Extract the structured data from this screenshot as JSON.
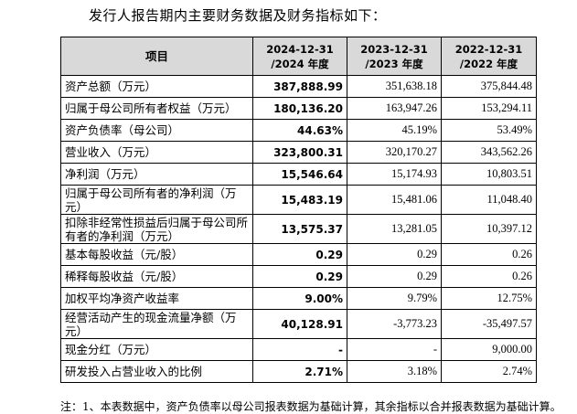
{
  "intro": "发行人报告期内主要财务数据及财务指标如下：",
  "header": {
    "item": "项目",
    "cols": [
      {
        "l1": "2024-12-31",
        "l2": "/2024 年度"
      },
      {
        "l1": "2023-12-31",
        "l2": "/2023 年度"
      },
      {
        "l1": "2022-12-31",
        "l2": "/2022 年度"
      }
    ]
  },
  "rows": [
    {
      "label": "资产总额（万元）",
      "v2024": "387,888.99",
      "v2023": "351,638.18",
      "v2022": "375,844.48"
    },
    {
      "label": "归属于母公司所有者权益（万元）",
      "v2024": "180,136.20",
      "v2023": "163,947.26",
      "v2022": "153,294.11"
    },
    {
      "label": "资产负债率（母公司）",
      "v2024": "44.63%",
      "v2023": "45.19%",
      "v2022": "53.49%"
    },
    {
      "label": "营业收入（万元）",
      "v2024": "323,800.31",
      "v2023": "320,170.27",
      "v2022": "343,562.26"
    },
    {
      "label": "净利润（万元）",
      "v2024": "15,546.64",
      "v2023": "15,174.93",
      "v2022": "10,803.51"
    },
    {
      "label": "归属于母公司所有者的净利润（万元）",
      "v2024": "15,483.19",
      "v2023": "15,481.06",
      "v2022": "11,048.40"
    },
    {
      "label": "扣除非经常性损益后归属于母公司所有者的净利润（万元）",
      "v2024": "13,575.37",
      "v2023": "13,281.05",
      "v2022": "10,397.12"
    },
    {
      "label": "基本每股收益（元/股）",
      "v2024": "0.29",
      "v2023": "0.29",
      "v2022": "0.26"
    },
    {
      "label": "稀释每股收益（元/股）",
      "v2024": "0.29",
      "v2023": "0.29",
      "v2022": "0.26"
    },
    {
      "label": "加权平均净资产收益率",
      "v2024": "9.00%",
      "v2023": "9.79%",
      "v2022": "12.75%"
    },
    {
      "label": "经营活动产生的现金流量净额（万元）",
      "v2024": "40,128.91",
      "v2023": "-3,773.23",
      "v2022": "-35,497.57"
    },
    {
      "label": "现金分红（万元）",
      "v2024": "-",
      "v2023": "-",
      "v2022": "9,000.00"
    },
    {
      "label": "研发投入占营业收入的比例",
      "v2024": "2.71%",
      "v2023": "3.18%",
      "v2022": "2.74%"
    }
  ],
  "footnote": "注：1、本表数据中，资产负债率以母公司报表数据为基础计算，其余指标以合并报表数据为基础计算。"
}
